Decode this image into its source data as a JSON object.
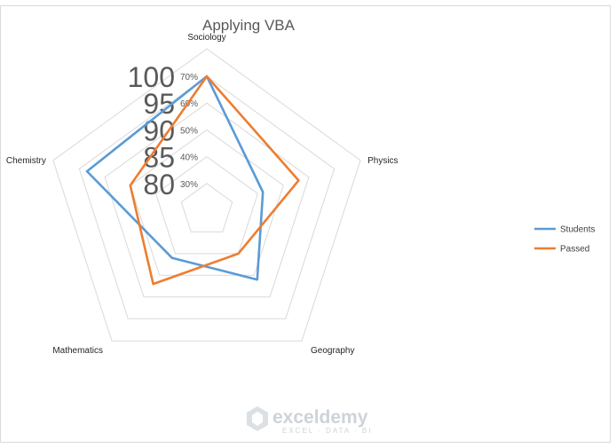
{
  "chart_data": {
    "type": "radar",
    "title": "Applying VBA",
    "categories": [
      "Sociology",
      "Physics",
      "Geography",
      "Mathematics",
      "Chemistry"
    ],
    "radial_ticks_small": [
      "70%",
      "60%",
      "50%",
      "40%",
      "30%"
    ],
    "radial_ticks_large": [
      "100",
      "95",
      "90",
      "85",
      "80"
    ],
    "rlim": [
      0.2,
      0.7
    ],
    "grid": true,
    "legend_position": "right",
    "series": [
      {
        "name": "Students",
        "color": "#5b9bd5",
        "values": [
          0.7,
          0.42,
          0.52,
          0.42,
          0.67
        ]
      },
      {
        "name": "Passed",
        "color": "#ed7d31",
        "values": [
          0.7,
          0.56,
          0.4,
          0.54,
          0.5
        ]
      }
    ]
  },
  "watermark": {
    "brand": "exceldemy",
    "tagline": "EXCEL · DATA · BI"
  }
}
